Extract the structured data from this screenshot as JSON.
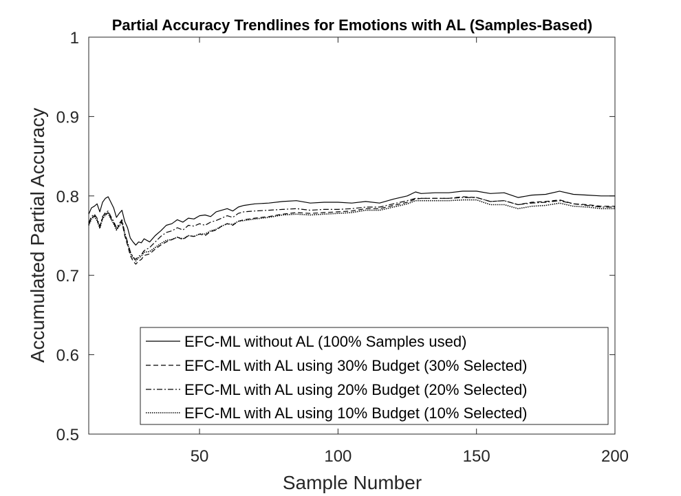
{
  "chart_data": {
    "type": "line",
    "title": "Partial Accuracy Trendlines for Emotions with AL (Samples-Based)",
    "xlabel": "Sample Number",
    "ylabel": "Accumulated Partial Accuracy",
    "xlim": [
      10,
      200
    ],
    "ylim": [
      0.5,
      1
    ],
    "xticks": [
      50,
      100,
      150,
      200
    ],
    "yticks": [
      0.5,
      0.6,
      0.7,
      0.8,
      0.9,
      1
    ],
    "ytick_labels": [
      "0.5",
      "0.6",
      "0.7",
      "0.8",
      "0.9",
      "1"
    ],
    "grid": false,
    "legend_position": "bottom-right",
    "series": [
      {
        "name": "EFC-ML without AL (100% Samples used)",
        "style": "solid",
        "points": [
          [
            10,
            0.777
          ],
          [
            11,
            0.785
          ],
          [
            12,
            0.787
          ],
          [
            13,
            0.79
          ],
          [
            14,
            0.78
          ],
          [
            15,
            0.792
          ],
          [
            16,
            0.797
          ],
          [
            17,
            0.799
          ],
          [
            18,
            0.792
          ],
          [
            19,
            0.785
          ],
          [
            20,
            0.773
          ],
          [
            21,
            0.778
          ],
          [
            22,
            0.782
          ],
          [
            23,
            0.768
          ],
          [
            24,
            0.76
          ],
          [
            25,
            0.747
          ],
          [
            26,
            0.742
          ],
          [
            27,
            0.738
          ],
          [
            28,
            0.742
          ],
          [
            29,
            0.741
          ],
          [
            30,
            0.746
          ],
          [
            32,
            0.742
          ],
          [
            34,
            0.75
          ],
          [
            36,
            0.756
          ],
          [
            38,
            0.763
          ],
          [
            40,
            0.765
          ],
          [
            42,
            0.77
          ],
          [
            44,
            0.767
          ],
          [
            46,
            0.772
          ],
          [
            48,
            0.771
          ],
          [
            50,
            0.775
          ],
          [
            52,
            0.776
          ],
          [
            54,
            0.774
          ],
          [
            56,
            0.78
          ],
          [
            58,
            0.782
          ],
          [
            60,
            0.784
          ],
          [
            62,
            0.781
          ],
          [
            64,
            0.786
          ],
          [
            66,
            0.788
          ],
          [
            70,
            0.79
          ],
          [
            75,
            0.791
          ],
          [
            80,
            0.793
          ],
          [
            85,
            0.794
          ],
          [
            90,
            0.791
          ],
          [
            95,
            0.792
          ],
          [
            100,
            0.792
          ],
          [
            105,
            0.791
          ],
          [
            110,
            0.793
          ],
          [
            115,
            0.791
          ],
          [
            120,
            0.796
          ],
          [
            125,
            0.8
          ],
          [
            128,
            0.805
          ],
          [
            130,
            0.803
          ],
          [
            135,
            0.804
          ],
          [
            140,
            0.804
          ],
          [
            145,
            0.806
          ],
          [
            150,
            0.806
          ],
          [
            155,
            0.803
          ],
          [
            160,
            0.804
          ],
          [
            165,
            0.798
          ],
          [
            170,
            0.801
          ],
          [
            175,
            0.802
          ],
          [
            180,
            0.806
          ],
          [
            185,
            0.802
          ],
          [
            190,
            0.801
          ],
          [
            195,
            0.8
          ],
          [
            200,
            0.8
          ]
        ]
      },
      {
        "name": "EFC-ML with AL using 30% Budget (30% Selected)",
        "style": "dashed",
        "points": [
          [
            10,
            0.764
          ],
          [
            11,
            0.772
          ],
          [
            12,
            0.775
          ],
          [
            13,
            0.77
          ],
          [
            14,
            0.76
          ],
          [
            15,
            0.772
          ],
          [
            16,
            0.777
          ],
          [
            17,
            0.779
          ],
          [
            18,
            0.772
          ],
          [
            19,
            0.766
          ],
          [
            20,
            0.758
          ],
          [
            21,
            0.763
          ],
          [
            22,
            0.768
          ],
          [
            23,
            0.75
          ],
          [
            24,
            0.738
          ],
          [
            25,
            0.725
          ],
          [
            26,
            0.718
          ],
          [
            27,
            0.714
          ],
          [
            28,
            0.718
          ],
          [
            29,
            0.72
          ],
          [
            30,
            0.725
          ],
          [
            32,
            0.727
          ],
          [
            34,
            0.733
          ],
          [
            36,
            0.738
          ],
          [
            38,
            0.742
          ],
          [
            40,
            0.745
          ],
          [
            42,
            0.748
          ],
          [
            44,
            0.745
          ],
          [
            46,
            0.75
          ],
          [
            48,
            0.749
          ],
          [
            50,
            0.752
          ],
          [
            52,
            0.75
          ],
          [
            54,
            0.755
          ],
          [
            56,
            0.757
          ],
          [
            58,
            0.762
          ],
          [
            60,
            0.765
          ],
          [
            62,
            0.763
          ],
          [
            64,
            0.768
          ],
          [
            66,
            0.77
          ],
          [
            70,
            0.772
          ],
          [
            75,
            0.774
          ],
          [
            80,
            0.777
          ],
          [
            85,
            0.779
          ],
          [
            90,
            0.778
          ],
          [
            95,
            0.779
          ],
          [
            100,
            0.78
          ],
          [
            105,
            0.781
          ],
          [
            110,
            0.784
          ],
          [
            115,
            0.784
          ],
          [
            120,
            0.788
          ],
          [
            125,
            0.792
          ],
          [
            128,
            0.796
          ],
          [
            130,
            0.797
          ],
          [
            135,
            0.797
          ],
          [
            140,
            0.797
          ],
          [
            145,
            0.799
          ],
          [
            150,
            0.798
          ],
          [
            155,
            0.793
          ],
          [
            160,
            0.794
          ],
          [
            165,
            0.789
          ],
          [
            170,
            0.792
          ],
          [
            175,
            0.793
          ],
          [
            180,
            0.795
          ],
          [
            185,
            0.79
          ],
          [
            190,
            0.789
          ],
          [
            195,
            0.787
          ],
          [
            200,
            0.787
          ]
        ]
      },
      {
        "name": "EFC-ML with AL using 20% Budget (20% Selected)",
        "style": "dash-dot",
        "points": [
          [
            10,
            0.766
          ],
          [
            11,
            0.774
          ],
          [
            12,
            0.777
          ],
          [
            13,
            0.772
          ],
          [
            14,
            0.762
          ],
          [
            15,
            0.774
          ],
          [
            16,
            0.779
          ],
          [
            17,
            0.781
          ],
          [
            18,
            0.774
          ],
          [
            19,
            0.768
          ],
          [
            20,
            0.76
          ],
          [
            21,
            0.765
          ],
          [
            22,
            0.77
          ],
          [
            23,
            0.754
          ],
          [
            24,
            0.742
          ],
          [
            25,
            0.73
          ],
          [
            26,
            0.723
          ],
          [
            27,
            0.72
          ],
          [
            28,
            0.724
          ],
          [
            29,
            0.726
          ],
          [
            30,
            0.731
          ],
          [
            32,
            0.735
          ],
          [
            34,
            0.742
          ],
          [
            36,
            0.749
          ],
          [
            38,
            0.754
          ],
          [
            40,
            0.756
          ],
          [
            42,
            0.76
          ],
          [
            44,
            0.757
          ],
          [
            46,
            0.763
          ],
          [
            48,
            0.762
          ],
          [
            50,
            0.765
          ],
          [
            52,
            0.763
          ],
          [
            54,
            0.767
          ],
          [
            56,
            0.769
          ],
          [
            58,
            0.772
          ],
          [
            60,
            0.775
          ],
          [
            62,
            0.773
          ],
          [
            64,
            0.778
          ],
          [
            66,
            0.78
          ],
          [
            70,
            0.781
          ],
          [
            75,
            0.782
          ],
          [
            80,
            0.783
          ],
          [
            85,
            0.784
          ],
          [
            90,
            0.782
          ],
          [
            95,
            0.783
          ],
          [
            100,
            0.783
          ],
          [
            105,
            0.784
          ],
          [
            110,
            0.786
          ],
          [
            115,
            0.786
          ],
          [
            120,
            0.79
          ],
          [
            125,
            0.794
          ],
          [
            128,
            0.797
          ],
          [
            130,
            0.797
          ],
          [
            135,
            0.797
          ],
          [
            140,
            0.797
          ],
          [
            145,
            0.798
          ],
          [
            150,
            0.798
          ],
          [
            155,
            0.793
          ],
          [
            160,
            0.794
          ],
          [
            165,
            0.789
          ],
          [
            170,
            0.791
          ],
          [
            175,
            0.792
          ],
          [
            180,
            0.794
          ],
          [
            185,
            0.79
          ],
          [
            190,
            0.788
          ],
          [
            195,
            0.786
          ],
          [
            200,
            0.786
          ]
        ]
      },
      {
        "name": "EFC-ML with AL using 10% Budget (10% Selected)",
        "style": "dotted",
        "points": [
          [
            10,
            0.763
          ],
          [
            11,
            0.771
          ],
          [
            12,
            0.774
          ],
          [
            13,
            0.769
          ],
          [
            14,
            0.759
          ],
          [
            15,
            0.771
          ],
          [
            16,
            0.776
          ],
          [
            17,
            0.778
          ],
          [
            18,
            0.771
          ],
          [
            19,
            0.765
          ],
          [
            20,
            0.757
          ],
          [
            21,
            0.762
          ],
          [
            22,
            0.767
          ],
          [
            23,
            0.752
          ],
          [
            24,
            0.74
          ],
          [
            25,
            0.728
          ],
          [
            26,
            0.722
          ],
          [
            27,
            0.718
          ],
          [
            28,
            0.722
          ],
          [
            29,
            0.724
          ],
          [
            30,
            0.729
          ],
          [
            32,
            0.73
          ],
          [
            34,
            0.735
          ],
          [
            36,
            0.74
          ],
          [
            38,
            0.744
          ],
          [
            40,
            0.745
          ],
          [
            42,
            0.748
          ],
          [
            44,
            0.746
          ],
          [
            46,
            0.75
          ],
          [
            48,
            0.749
          ],
          [
            50,
            0.752
          ],
          [
            52,
            0.752
          ],
          [
            54,
            0.756
          ],
          [
            56,
            0.758
          ],
          [
            58,
            0.762
          ],
          [
            60,
            0.765
          ],
          [
            62,
            0.764
          ],
          [
            64,
            0.768
          ],
          [
            66,
            0.769
          ],
          [
            70,
            0.771
          ],
          [
            75,
            0.773
          ],
          [
            80,
            0.776
          ],
          [
            85,
            0.777
          ],
          [
            90,
            0.776
          ],
          [
            95,
            0.777
          ],
          [
            100,
            0.778
          ],
          [
            105,
            0.779
          ],
          [
            110,
            0.782
          ],
          [
            115,
            0.782
          ],
          [
            120,
            0.786
          ],
          [
            125,
            0.79
          ],
          [
            128,
            0.794
          ],
          [
            130,
            0.794
          ],
          [
            135,
            0.794
          ],
          [
            140,
            0.794
          ],
          [
            145,
            0.795
          ],
          [
            150,
            0.795
          ],
          [
            155,
            0.789
          ],
          [
            160,
            0.789
          ],
          [
            165,
            0.784
          ],
          [
            170,
            0.787
          ],
          [
            175,
            0.788
          ],
          [
            180,
            0.791
          ],
          [
            185,
            0.787
          ],
          [
            190,
            0.786
          ],
          [
            195,
            0.784
          ],
          [
            200,
            0.784
          ]
        ]
      }
    ]
  }
}
